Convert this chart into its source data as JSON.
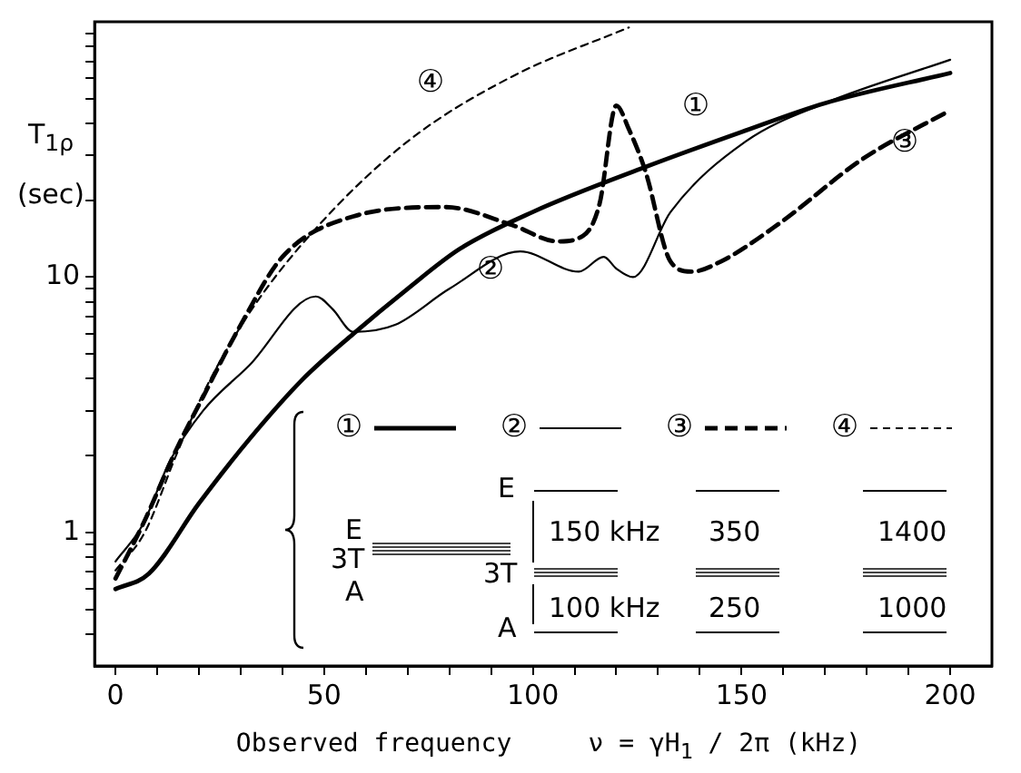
{
  "chart_data": {
    "type": "line",
    "ylabel": "T$_{1ρ}$ (sec)",
    "xlabel": "Observed frequency     ν = γH$_{1}$ / 2π (kHz)",
    "xlim": [
      -5,
      210
    ],
    "xticks": [
      0,
      {
        "value": 10,
        "label": null
      },
      {
        "value": 20,
        "label": null
      },
      {
        "value": 30,
        "label": null
      },
      {
        "value": 40,
        "label": null
      },
      50,
      {
        "value": 60,
        "label": null
      },
      {
        "value": 70,
        "label": null
      },
      {
        "value": 80,
        "label": null
      },
      {
        "value": 90,
        "label": null
      },
      100,
      {
        "value": 110,
        "label": null
      },
      {
        "value": 120,
        "label": null
      },
      {
        "value": 130,
        "label": null
      },
      {
        "value": 140,
        "label": null
      },
      150,
      {
        "value": 160,
        "label": null
      },
      {
        "value": 170,
        "label": null
      },
      {
        "value": 180,
        "label": null
      },
      {
        "value": 190,
        "label": null
      },
      200
    ],
    "ylim": [
      0.3,
      100
    ],
    "yticks": [
      {
        "value": 0.4,
        "label": null
      },
      {
        "value": 0.5,
        "label": null
      },
      {
        "value": 0.6,
        "label": null
      },
      {
        "value": 0.7,
        "label": null
      },
      {
        "value": 0.8,
        "label": null
      },
      {
        "value": 0.9,
        "label": null
      },
      1,
      {
        "value": 2,
        "label": null
      },
      {
        "value": 3,
        "label": null
      },
      {
        "value": 4,
        "label": null
      },
      {
        "value": 5,
        "label": null
      },
      {
        "value": 6,
        "label": null
      },
      {
        "value": 7,
        "label": null
      },
      {
        "value": 8,
        "label": null
      },
      {
        "value": 9,
        "label": null
      },
      10,
      {
        "value": 20,
        "label": null
      },
      {
        "value": 30,
        "label": null
      },
      {
        "value": 40,
        "label": null
      },
      {
        "value": 50,
        "label": null
      },
      {
        "value": 60,
        "label": null
      },
      {
        "value": 70,
        "label": null
      },
      {
        "value": 80,
        "label": null
      },
      {
        "value": 90,
        "label": null
      }
    ],
    "log": "y",
    "grid": false,
    "legend": "bottom right",
    "marker": "none",
    "series": [
      {
        "name": "①",
        "color": "#000000",
        "line_style": "solid",
        "x": [
          0,
          8,
          20,
          32,
          45,
          57,
          70,
          82.5,
          100,
          127,
          150,
          170,
          200
        ],
        "values": [
          0.6,
          0.69,
          1.3,
          2.31,
          4,
          6,
          9,
          12.9,
          18,
          27,
          37,
          48,
          63
        ]
      },
      {
        "name": "②",
        "color": "#000000",
        "line_style": "solid",
        "x": [
          0,
          6.5,
          13,
          21,
          32,
          48,
          52,
          57,
          67,
          80,
          97,
          111,
          117,
          120,
          124,
          133,
          151,
          170,
          200
        ],
        "values": [
          0.77,
          1.07,
          1.9,
          3,
          4.5,
          8.4,
          7.5,
          6.1,
          6.5,
          9,
          12.6,
          10.5,
          12,
          10.8,
          10,
          18,
          34,
          48,
          71
        ]
      },
      {
        "name": "③",
        "color": "#000000",
        "line_style": "dashed",
        "x": [
          0,
          6.5,
          14.5,
          21,
          30,
          40,
          57,
          79,
          95,
          106,
          112,
          116,
          120,
          123,
          127,
          133,
          138,
          145,
          159,
          179,
          200
        ],
        "values": [
          0.66,
          1.07,
          2.1,
          3.4,
          6.5,
          12,
          17.3,
          18.8,
          16,
          13.8,
          14.5,
          19.4,
          47,
          38,
          25.9,
          11.5,
          10.5,
          11.5,
          16.2,
          29,
          45
        ]
      },
      {
        "name": "④",
        "color": "#000000",
        "line_style": "dashed",
        "x": [
          0,
          7,
          14.5,
          21,
          32,
          48,
          70,
          95,
          123
        ],
        "values": [
          0.71,
          1.0,
          2.0,
          3.5,
          7.2,
          15.5,
          34,
          61,
          95
        ]
      }
    ],
    "annotations": [
      "E",
      "3T",
      "A",
      "E",
      "3T",
      "A",
      "150 kHz",
      "100 kHz",
      "350",
      "250",
      "1400",
      "1000"
    ]
  }
}
